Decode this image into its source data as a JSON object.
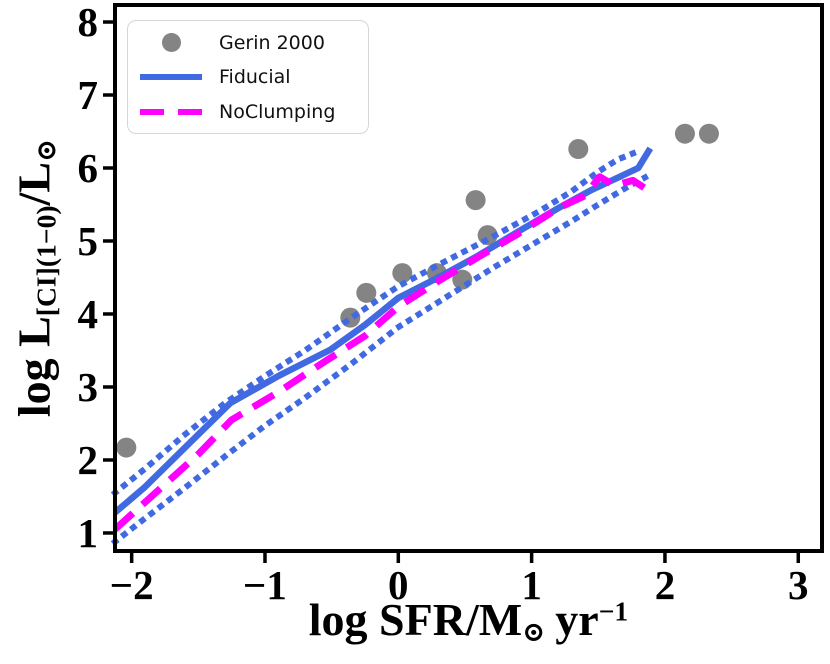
{
  "figure": {
    "legend": {
      "position": "upper left",
      "items": [
        {
          "label": "Gerin 2000",
          "marker": "dot",
          "color": "#848484"
        },
        {
          "label": "Fiducial",
          "marker": "solid-line",
          "color": "#4169e1"
        },
        {
          "label": "NoClumping",
          "marker": "dashed-line",
          "color": "#ff00ff"
        }
      ]
    },
    "xlabel": {
      "prefix": "log SFR/M",
      "sun": "⊙",
      "unit": "yr",
      "exponent": "−1"
    },
    "ylabel": {
      "prefix": "log L",
      "sub": "[CI](1−0)",
      "mid": "/L",
      "sun": "⊙"
    }
  },
  "chart_data": {
    "type": "line",
    "title": "",
    "xlabel": "log SFR/M_sun yr^-1",
    "ylabel": "log L_[CI](1-0)/L_sun",
    "grid": false,
    "legend_position": "upper left",
    "xlim": [
      -2.125,
      3.178
    ],
    "ylim": [
      0.753,
      8.233
    ],
    "xticks": {
      "values": [
        -2,
        -1,
        0,
        1,
        2,
        3
      ],
      "labels": [
        "−2",
        "−1",
        "0",
        "1",
        "2",
        "3"
      ]
    },
    "yticks": {
      "values": [
        1,
        2,
        3,
        4,
        5,
        6,
        7,
        8
      ],
      "labels": [
        "1",
        "2",
        "3",
        "4",
        "5",
        "6",
        "7",
        "8"
      ]
    },
    "series": [
      {
        "name": "Gerin 2000",
        "type": "scatter",
        "color": "#848484",
        "marker_radius": 10,
        "points": [
          [
            -2.04,
            2.17
          ],
          [
            -0.36,
            3.95
          ],
          [
            -0.24,
            4.29
          ],
          [
            0.03,
            4.56
          ],
          [
            0.29,
            4.56
          ],
          [
            0.48,
            4.47
          ],
          [
            0.58,
            5.56
          ],
          [
            0.67,
            5.08
          ],
          [
            1.35,
            6.26
          ],
          [
            2.15,
            6.47
          ],
          [
            2.33,
            6.47
          ]
        ]
      },
      {
        "name": "Fiducial lower scatter",
        "type": "line",
        "style": "dotted",
        "color": "#4169e1",
        "width": 6,
        "points": [
          [
            -2.125,
            0.88
          ],
          [
            -1.9,
            1.2
          ],
          [
            -1.6,
            1.62
          ],
          [
            -1.3,
            2.05
          ],
          [
            -1.0,
            2.47
          ],
          [
            -0.7,
            2.85
          ],
          [
            -0.35,
            3.32
          ],
          [
            0.0,
            3.82
          ],
          [
            0.35,
            4.22
          ],
          [
            0.7,
            4.62
          ],
          [
            1.05,
            5.0
          ],
          [
            1.3,
            5.27
          ],
          [
            1.5,
            5.5
          ],
          [
            1.7,
            5.72
          ],
          [
            1.85,
            5.87
          ]
        ]
      },
      {
        "name": "Fiducial upper scatter",
        "type": "line",
        "style": "dotted",
        "color": "#4169e1",
        "width": 6,
        "points": [
          [
            -2.125,
            1.55
          ],
          [
            -1.9,
            1.88
          ],
          [
            -1.6,
            2.35
          ],
          [
            -1.3,
            2.78
          ],
          [
            -1.0,
            3.15
          ],
          [
            -0.7,
            3.5
          ],
          [
            -0.35,
            3.95
          ],
          [
            0.0,
            4.38
          ],
          [
            0.35,
            4.72
          ],
          [
            0.7,
            5.05
          ],
          [
            1.05,
            5.4
          ],
          [
            1.3,
            5.68
          ],
          [
            1.5,
            5.95
          ],
          [
            1.65,
            6.12
          ],
          [
            1.76,
            6.2
          ]
        ]
      },
      {
        "name": "Fiducial",
        "type": "line",
        "style": "solid",
        "color": "#4169e1",
        "width": 6.5,
        "points": [
          [
            -2.125,
            1.28
          ],
          [
            -1.9,
            1.63
          ],
          [
            -1.7,
            1.99
          ],
          [
            -1.5,
            2.35
          ],
          [
            -1.26,
            2.78
          ],
          [
            -0.89,
            3.16
          ],
          [
            -0.51,
            3.51
          ],
          [
            -0.25,
            3.85
          ],
          [
            0.0,
            4.22
          ],
          [
            0.3,
            4.5
          ],
          [
            0.6,
            4.8
          ],
          [
            0.9,
            5.13
          ],
          [
            1.2,
            5.45
          ],
          [
            1.45,
            5.7
          ],
          [
            1.65,
            5.87
          ],
          [
            1.8,
            6.0
          ],
          [
            1.89,
            6.27
          ]
        ]
      },
      {
        "name": "NoClumping",
        "type": "line",
        "style": "dashed",
        "color": "#ff00ff",
        "width": 7,
        "points": [
          [
            -2.125,
            1.05
          ],
          [
            -1.9,
            1.42
          ],
          [
            -1.7,
            1.75
          ],
          [
            -1.5,
            2.08
          ],
          [
            -1.25,
            2.55
          ],
          [
            -0.9,
            2.93
          ],
          [
            -0.55,
            3.35
          ],
          [
            -0.25,
            3.7
          ],
          [
            0.0,
            4.1
          ],
          [
            0.3,
            4.45
          ],
          [
            0.6,
            4.78
          ],
          [
            0.9,
            5.1
          ],
          [
            1.2,
            5.45
          ],
          [
            1.4,
            5.62
          ],
          [
            1.51,
            5.88
          ],
          [
            1.62,
            5.76
          ],
          [
            1.76,
            5.83
          ],
          [
            1.87,
            5.7
          ]
        ]
      }
    ]
  }
}
